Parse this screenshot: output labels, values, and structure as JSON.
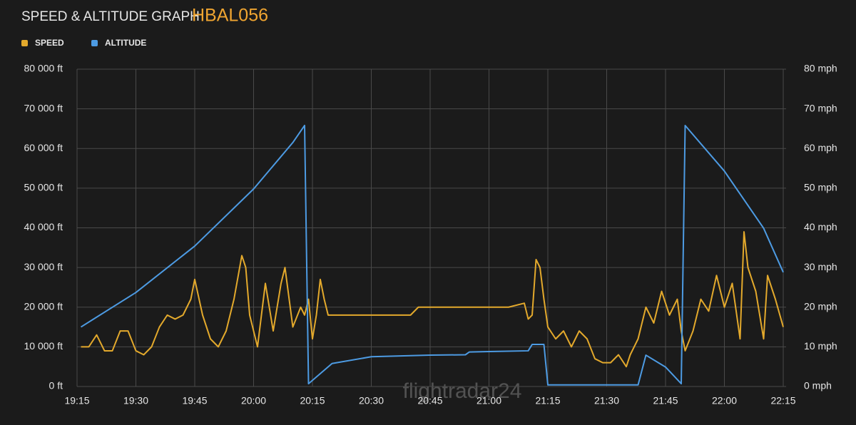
{
  "chart_data": {
    "type": "line",
    "title": "SPEED & ALTITUDE GRAPH",
    "subtitle": "HBAL056",
    "watermark": "flightradar24",
    "xlim": [
      "19:15",
      "22:15"
    ],
    "xticks": [
      "19:15",
      "19:30",
      "19:45",
      "20:00",
      "20:15",
      "20:30",
      "20:45",
      "21:00",
      "21:15",
      "21:30",
      "21:45",
      "22:00",
      "22:15"
    ],
    "ylim": [
      0,
      80000
    ],
    "yticks": [
      {
        "value": 0,
        "label": "0 ft"
      },
      {
        "value": 10000,
        "label": "10 000 ft"
      },
      {
        "value": 20000,
        "label": "20 000 ft"
      },
      {
        "value": 30000,
        "label": "30 000 ft"
      },
      {
        "value": 40000,
        "label": "40 000 ft"
      },
      {
        "value": 50000,
        "label": "50 000 ft"
      },
      {
        "value": 60000,
        "label": "60 000 ft"
      },
      {
        "value": 70000,
        "label": "70 000 ft"
      },
      {
        "value": 80000,
        "label": "80 000 ft"
      }
    ],
    "y2lim": [
      0,
      80
    ],
    "y2ticks": [
      {
        "value": 0,
        "label": "0 mph"
      },
      {
        "value": 10,
        "label": "10 mph"
      },
      {
        "value": 20,
        "label": "20 mph"
      },
      {
        "value": 30,
        "label": "30 mph"
      },
      {
        "value": 40,
        "label": "40 mph"
      },
      {
        "value": 50,
        "label": "50 mph"
      },
      {
        "value": 60,
        "label": "60 mph"
      },
      {
        "value": 70,
        "label": "70 mph"
      },
      {
        "value": 80,
        "label": "80 mph"
      }
    ],
    "grid": true,
    "series": [
      {
        "name": "SPEED",
        "color": "#e3a92c",
        "axis": "y2",
        "x": [
          "19:16",
          "19:18",
          "19:20",
          "19:22",
          "19:24",
          "19:26",
          "19:28",
          "19:30",
          "19:32",
          "19:34",
          "19:36",
          "19:38",
          "19:40",
          "19:42",
          "19:44",
          "19:45",
          "19:47",
          "19:49",
          "19:51",
          "19:53",
          "19:55",
          "19:57",
          "19:58",
          "19:59",
          "20:01",
          "20:03",
          "20:05",
          "20:07",
          "20:08",
          "20:10",
          "20:12",
          "20:13",
          "20:14",
          "20:15",
          "20:16",
          "20:17",
          "20:18",
          "20:19",
          "20:40",
          "20:42",
          "21:05",
          "21:09",
          "21:10",
          "21:11",
          "21:12",
          "21:13",
          "21:14",
          "21:15",
          "21:17",
          "21:19",
          "21:21",
          "21:23",
          "21:25",
          "21:27",
          "21:29",
          "21:31",
          "21:33",
          "21:35",
          "21:36",
          "21:38",
          "21:40",
          "21:42",
          "21:44",
          "21:46",
          "21:48",
          "21:49",
          "21:50",
          "21:52",
          "21:54",
          "21:56",
          "21:58",
          "22:00",
          "22:02",
          "22:04",
          "22:05",
          "22:06",
          "22:08",
          "22:10",
          "22:11",
          "22:13",
          "22:15"
        ],
        "values": [
          10,
          10,
          13,
          9,
          9,
          14,
          14,
          9,
          8,
          10,
          15,
          18,
          17,
          18,
          22,
          27,
          18,
          12,
          10,
          14,
          22,
          33,
          30,
          18,
          10,
          26,
          14,
          26,
          30,
          15,
          20,
          18,
          22,
          12,
          18,
          27,
          22,
          18,
          18,
          20,
          20,
          21,
          17,
          18,
          32,
          30,
          22,
          15,
          12,
          14,
          10,
          14,
          12,
          7,
          6,
          6,
          8,
          5,
          8,
          12,
          20,
          16,
          24,
          18,
          22,
          14,
          9,
          14,
          22,
          19,
          28,
          20,
          26,
          12,
          39,
          30,
          24,
          12,
          28,
          22,
          15
        ]
      },
      {
        "name": "ALTITUDE",
        "color": "#4d9be3",
        "x": [
          "19:16",
          "19:30",
          "19:45",
          "20:00",
          "20:10",
          "20:13",
          "20:14",
          "20:20",
          "20:30",
          "20:45",
          "20:54",
          "20:55",
          "21:00",
          "21:10",
          "21:11",
          "21:14",
          "21:15",
          "21:38",
          "21:40",
          "21:45",
          "21:49",
          "21:50",
          "22:00",
          "22:10",
          "22:15"
        ],
        "values": [
          15000,
          23700,
          35400,
          49800,
          61500,
          65800,
          700,
          5800,
          7500,
          7900,
          8000,
          8700,
          8800,
          9000,
          10600,
          10600,
          400,
          400,
          7900,
          4900,
          700,
          65800,
          54300,
          39900,
          28800
        ]
      }
    ]
  }
}
